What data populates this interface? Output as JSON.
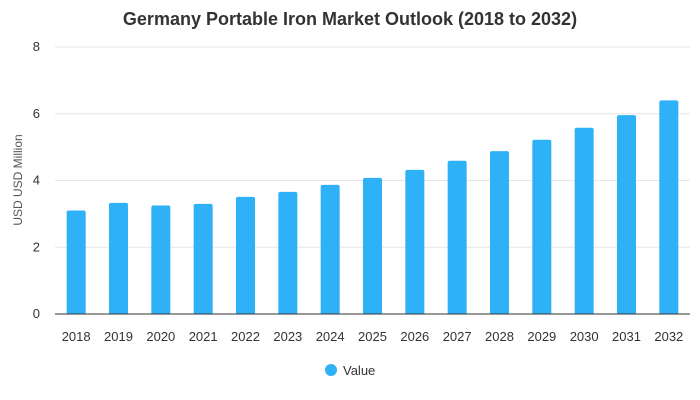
{
  "chart_data": {
    "type": "bar",
    "title": "Germany Portable Iron Market Outlook (2018 to 2032)",
    "xlabel": "",
    "ylabel": "USD USD Million",
    "categories": [
      "2018",
      "2019",
      "2020",
      "2021",
      "2022",
      "2023",
      "2024",
      "2025",
      "2026",
      "2027",
      "2028",
      "2029",
      "2030",
      "2031",
      "2032"
    ],
    "series": [
      {
        "name": "Value",
        "values": [
          3.1,
          3.33,
          3.25,
          3.3,
          3.51,
          3.66,
          3.87,
          4.08,
          4.32,
          4.59,
          4.88,
          5.22,
          5.58,
          5.96,
          6.4
        ]
      }
    ],
    "ylim": [
      0,
      8
    ],
    "yticks": [
      0,
      2,
      4,
      6,
      8
    ],
    "grid": true,
    "legend_position": "bottom-center",
    "colors": {
      "bar": "#2eb1f7",
      "grid": "#e6e6e6",
      "axis": "#333333"
    }
  }
}
